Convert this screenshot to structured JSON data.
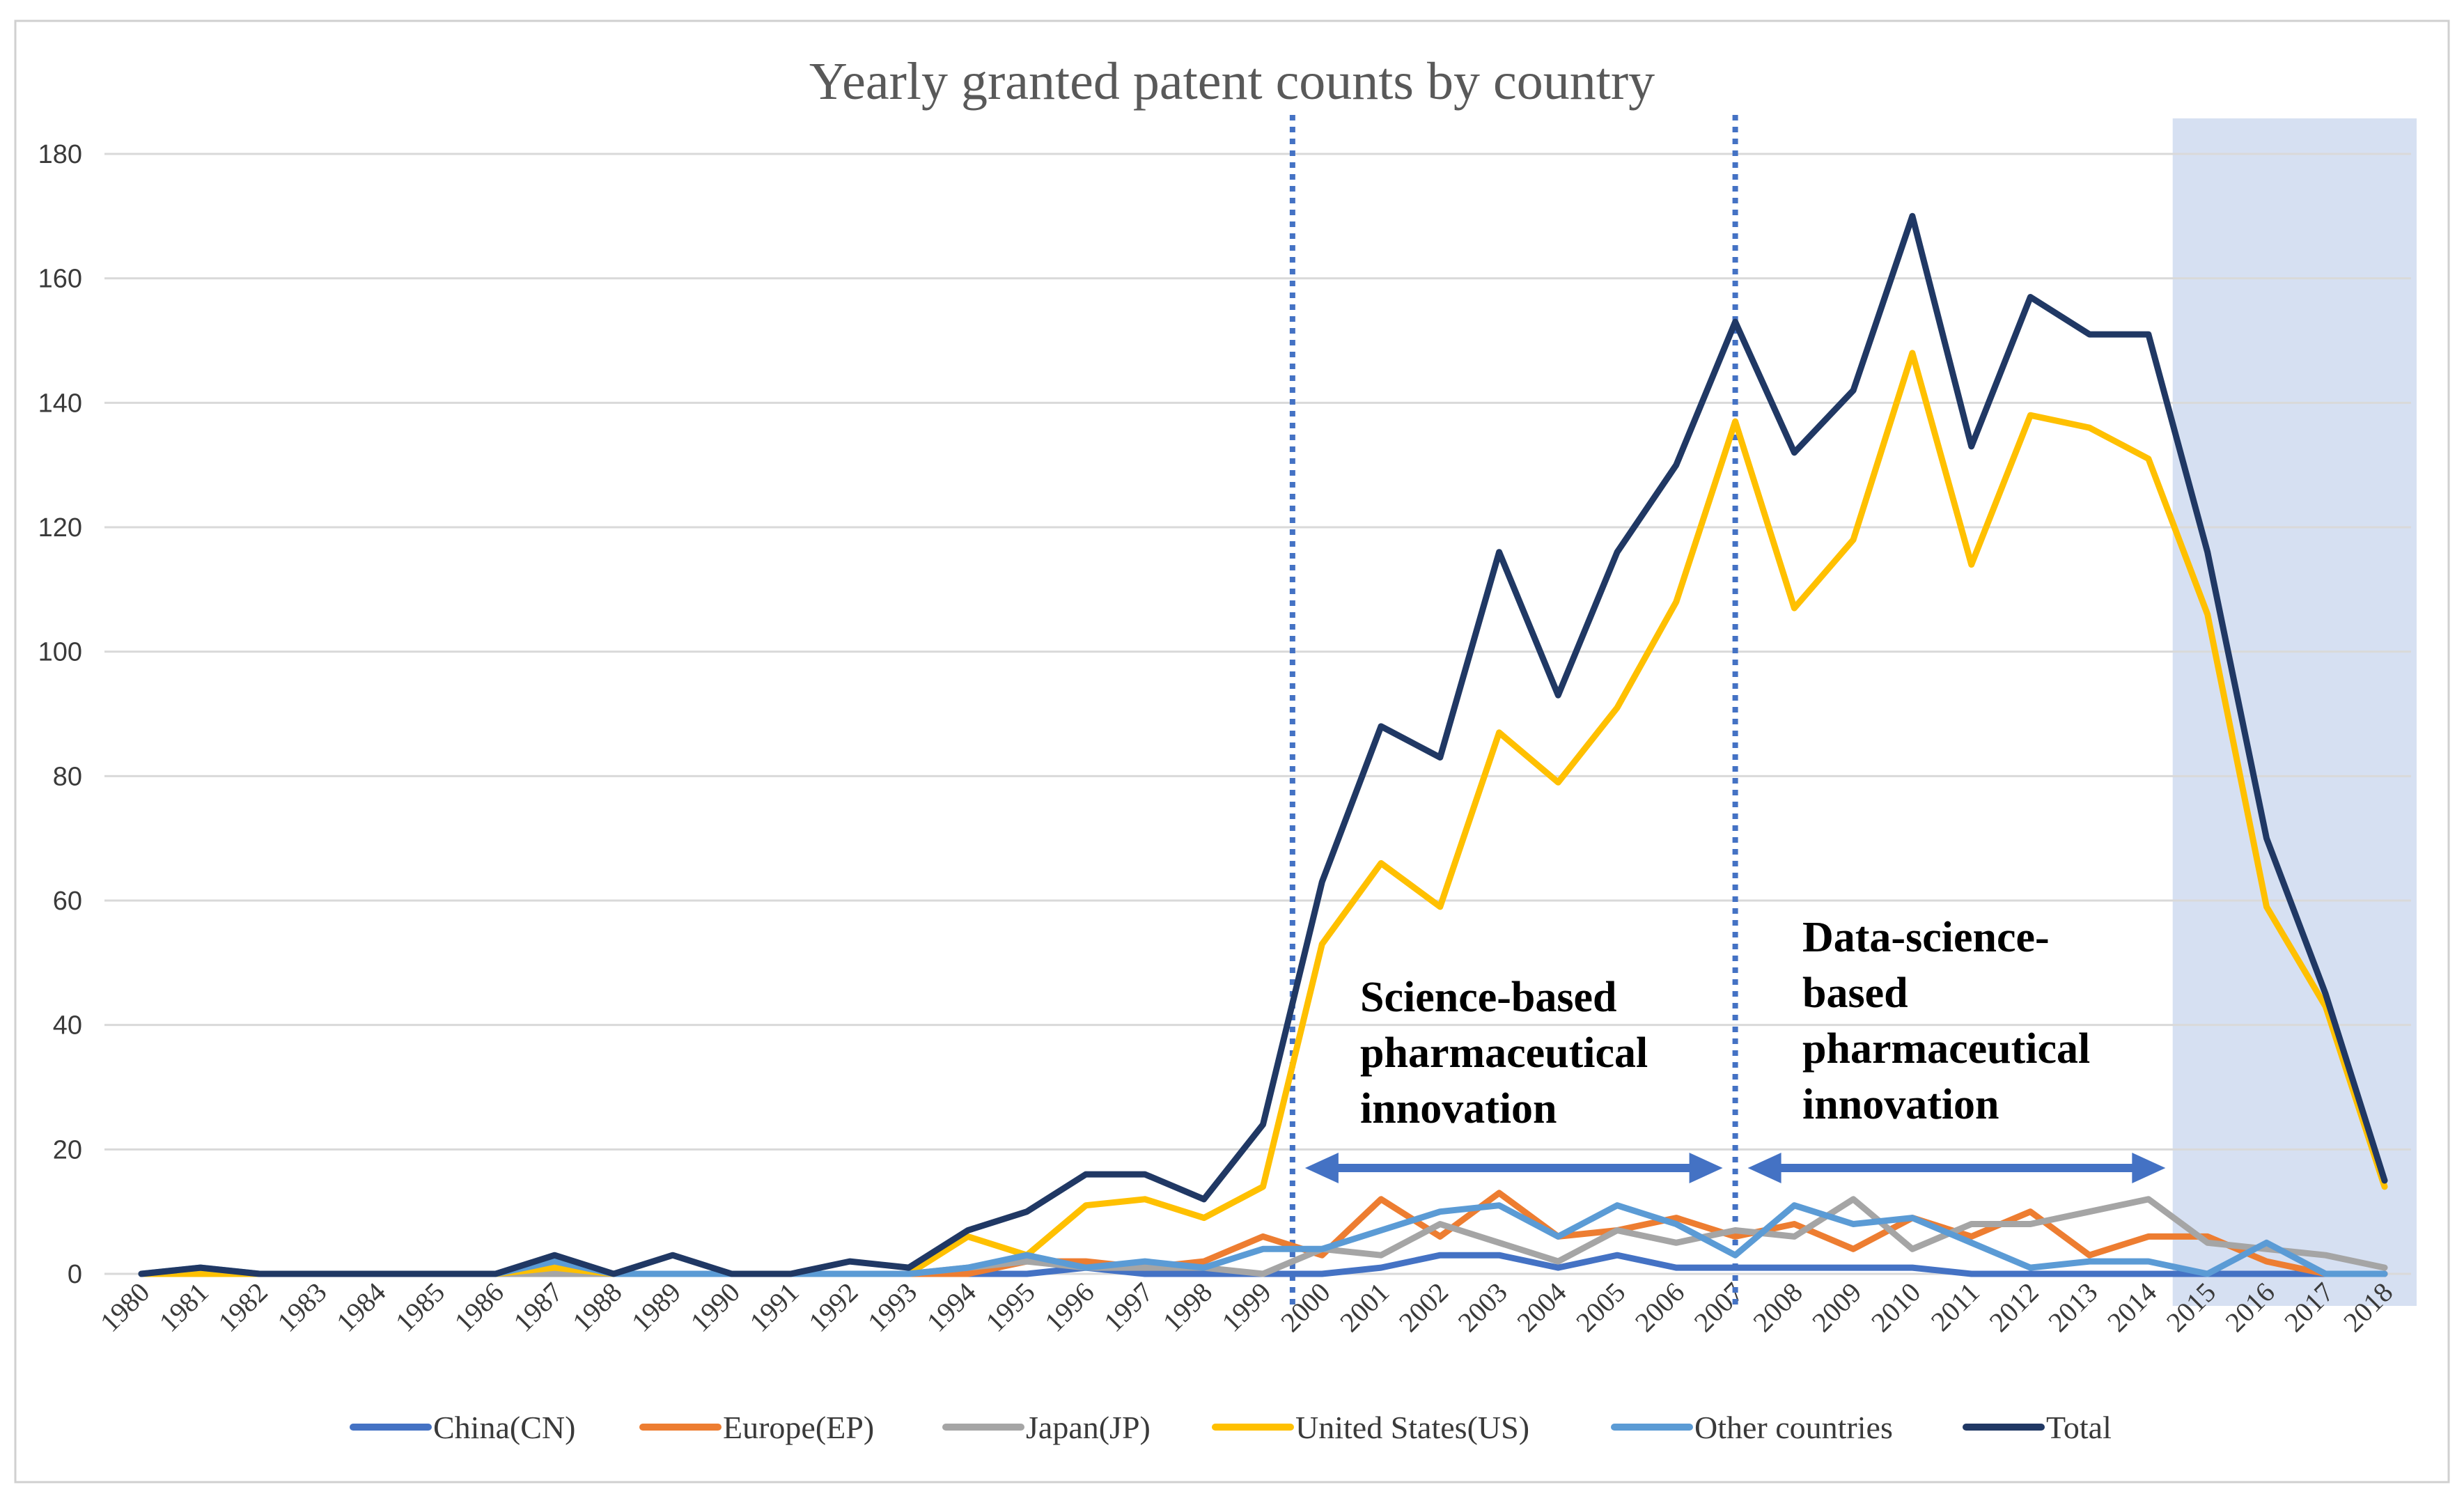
{
  "chart_data": {
    "type": "line",
    "title": "Yearly granted patent counts by country",
    "xlabel": "",
    "ylabel": "",
    "ylim": [
      0,
      180
    ],
    "yticks": [
      0,
      20,
      40,
      60,
      80,
      100,
      120,
      140,
      160,
      180
    ],
    "grid": true,
    "legend_position": "bottom",
    "categories": [
      "1980",
      "1981",
      "1982",
      "1983",
      "1984",
      "1985",
      "1986",
      "1987",
      "1988",
      "1989",
      "1990",
      "1991",
      "1992",
      "1993",
      "1994",
      "1995",
      "1996",
      "1997",
      "1998",
      "1999",
      "2000",
      "2001",
      "2002",
      "2003",
      "2004",
      "2005",
      "2006",
      "2007",
      "2008",
      "2009",
      "2010",
      "2011",
      "2012",
      "2013",
      "2014",
      "2015",
      "2016",
      "2017",
      "2018"
    ],
    "series": [
      {
        "name": "China(CN)",
        "color": "#4472c4",
        "values": [
          0,
          0,
          0,
          0,
          0,
          0,
          0,
          0,
          0,
          0,
          0,
          0,
          0,
          0,
          0,
          0,
          1,
          0,
          0,
          0,
          0,
          1,
          3,
          3,
          1,
          3,
          1,
          1,
          1,
          1,
          1,
          0,
          0,
          0,
          0,
          0,
          0,
          0,
          0
        ]
      },
      {
        "name": "Europe(EP)",
        "color": "#ed7d31",
        "values": [
          0,
          0,
          0,
          0,
          0,
          0,
          0,
          0,
          0,
          0,
          0,
          0,
          0,
          0,
          0,
          2,
          2,
          1,
          2,
          6,
          3,
          12,
          6,
          13,
          6,
          7,
          9,
          6,
          8,
          4,
          9,
          6,
          10,
          3,
          6,
          6,
          2,
          0,
          0
        ]
      },
      {
        "name": "Japan(JP)",
        "color": "#a5a5a5",
        "values": [
          0,
          0,
          0,
          0,
          0,
          0,
          0,
          0,
          0,
          0,
          0,
          0,
          0,
          0,
          1,
          2,
          1,
          1,
          1,
          0,
          4,
          3,
          8,
          5,
          2,
          7,
          5,
          7,
          6,
          12,
          4,
          8,
          8,
          10,
          12,
          5,
          4,
          3,
          1
        ]
      },
      {
        "name": "United States(US)",
        "color": "#ffc000",
        "values": [
          0,
          0,
          0,
          0,
          0,
          0,
          0,
          1,
          0,
          0,
          0,
          0,
          0,
          0,
          6,
          3,
          11,
          12,
          9,
          14,
          53,
          66,
          59,
          87,
          79,
          91,
          108,
          137,
          107,
          118,
          148,
          114,
          138,
          136,
          131,
          106,
          59,
          43,
          14
        ]
      },
      {
        "name": "Other countries",
        "color": "#5b9bd5",
        "values": [
          0,
          1,
          0,
          0,
          0,
          0,
          0,
          2,
          0,
          0,
          0,
          0,
          0,
          0,
          1,
          3,
          1,
          2,
          1,
          4,
          4,
          7,
          10,
          11,
          6,
          11,
          8,
          3,
          11,
          8,
          9,
          5,
          1,
          2,
          2,
          0,
          5,
          0,
          0
        ]
      },
      {
        "name": "Total",
        "color": "#203864",
        "values": [
          0,
          1,
          0,
          0,
          0,
          0,
          0,
          3,
          0,
          3,
          0,
          0,
          2,
          1,
          7,
          10,
          16,
          16,
          12,
          24,
          63,
          88,
          83,
          116,
          93,
          116,
          130,
          153,
          132,
          142,
          170,
          133,
          157,
          151,
          151,
          116,
          70,
          45,
          15
        ]
      }
    ],
    "vertical_dotted_lines_at": [
      "1999.5",
      "2007"
    ],
    "shaded_region": {
      "from": "2015",
      "to": "2018"
    },
    "annotations": [
      {
        "lines": [
          "Science-based",
          "pharmaceutical",
          "innovation"
        ],
        "arrow_from": "1999.5",
        "arrow_to": "2007"
      },
      {
        "lines": [
          "Data-science-",
          "based",
          "pharmaceutical",
          "innovation"
        ],
        "arrow_from": "2007",
        "arrow_to": "2014.5"
      }
    ]
  }
}
